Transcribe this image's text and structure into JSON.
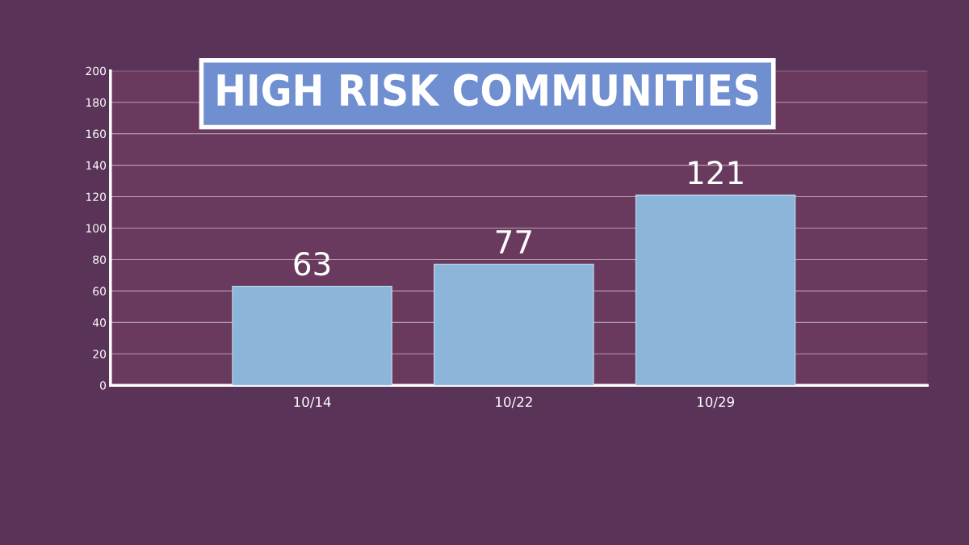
{
  "chart_data": {
    "type": "bar",
    "title": "HIGH RISK COMMUNITIES",
    "categories": [
      "10/14",
      "10/22",
      "10/29"
    ],
    "values": [
      63,
      77,
      121
    ],
    "color": "#8bb6da",
    "ylim": [
      0,
      200
    ],
    "yticks": [
      0,
      20,
      40,
      60,
      80,
      100,
      120,
      140,
      160,
      180,
      200
    ],
    "grid": "y",
    "data_labels": true
  }
}
